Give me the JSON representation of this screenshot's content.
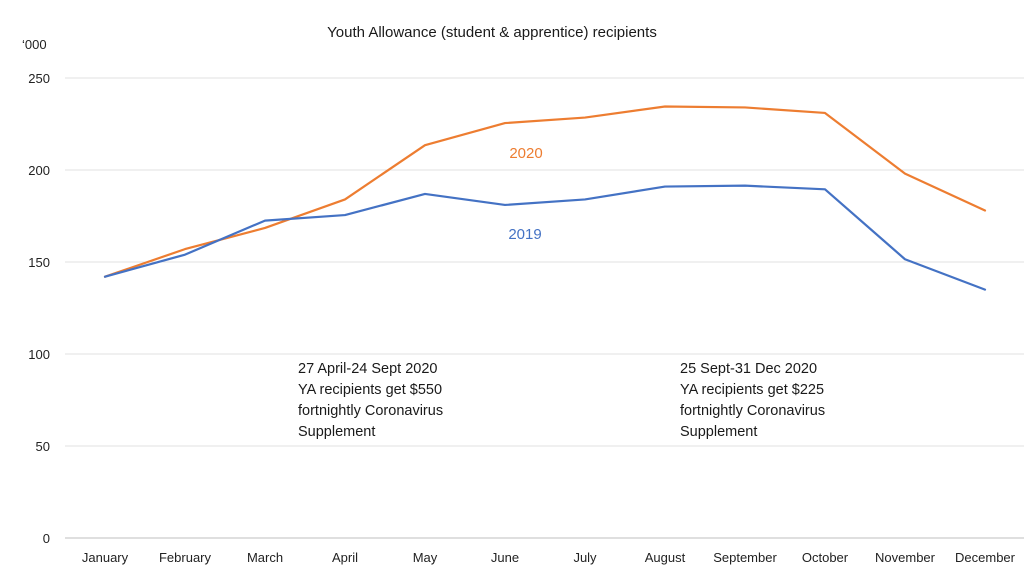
{
  "chart_data": {
    "type": "line",
    "title": "Youth Allowance (student & apprentice) recipients",
    "y_unit_label": "‘000",
    "ylim": [
      0,
      250
    ],
    "yticks": [
      0,
      50,
      100,
      150,
      200,
      250
    ],
    "grid": true,
    "categories": [
      "January",
      "February",
      "March",
      "April",
      "May",
      "June",
      "July",
      "August",
      "September",
      "October",
      "November",
      "December"
    ],
    "series": [
      {
        "name": "2020",
        "color": "#ED7D31",
        "values": [
          142,
          157,
          168.5,
          184,
          213.5,
          225.5,
          228.5,
          234.5,
          234,
          231,
          198,
          178
        ]
      },
      {
        "name": "2019",
        "color": "#4472C4",
        "values": [
          142,
          154,
          172.5,
          175.5,
          187,
          181,
          184,
          191,
          191.5,
          189.5,
          151.5,
          135
        ]
      }
    ],
    "annotations": [
      {
        "lines": [
          "27 April-24 Sept 2020",
          "YA recipients get $550",
          "fortnightly Coronavirus",
          "Supplement"
        ]
      },
      {
        "lines": [
          "25 Sept-31 Dec 2020",
          "YA recipients get $225",
          "fortnightly Coronavirus",
          "Supplement"
        ]
      }
    ]
  }
}
